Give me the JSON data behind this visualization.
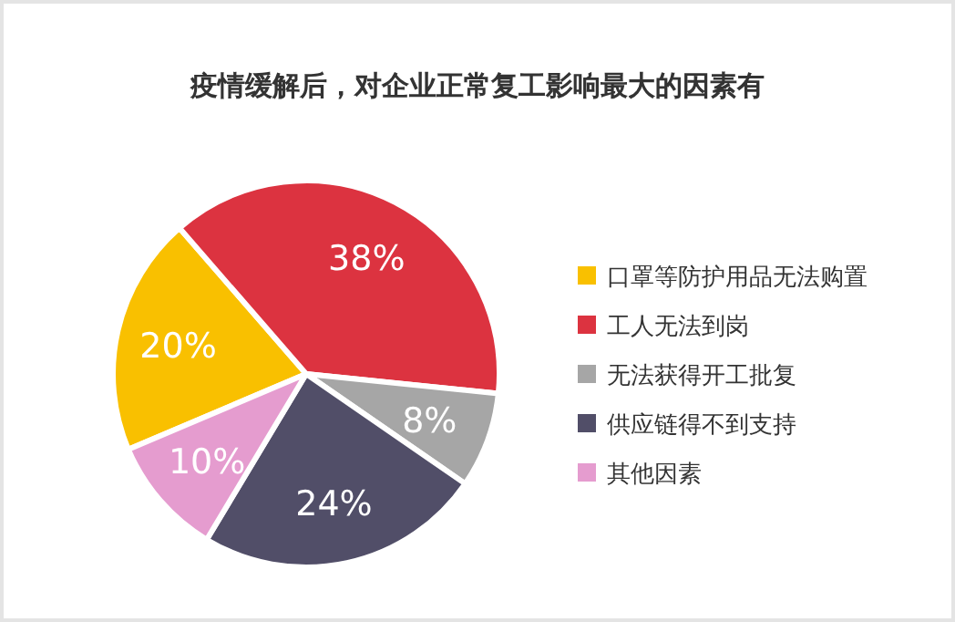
{
  "chart_data": {
    "type": "pie",
    "title": "疫情缓解后，对企业正常复工影响最大的因素有",
    "categories": [
      "口罩等防护用品无法购置",
      "工人无法到岗",
      "无法获得开工批复",
      "供应链得不到支持",
      "其他因素"
    ],
    "values": [
      20,
      38,
      8,
      24,
      10
    ],
    "colors": [
      "#f9c000",
      "#dc3340",
      "#a6a6a6",
      "#514e68",
      "#e59ccf"
    ],
    "value_labels": [
      "20%",
      "38%",
      "8%",
      "24%",
      "10%"
    ],
    "legend": "right"
  }
}
